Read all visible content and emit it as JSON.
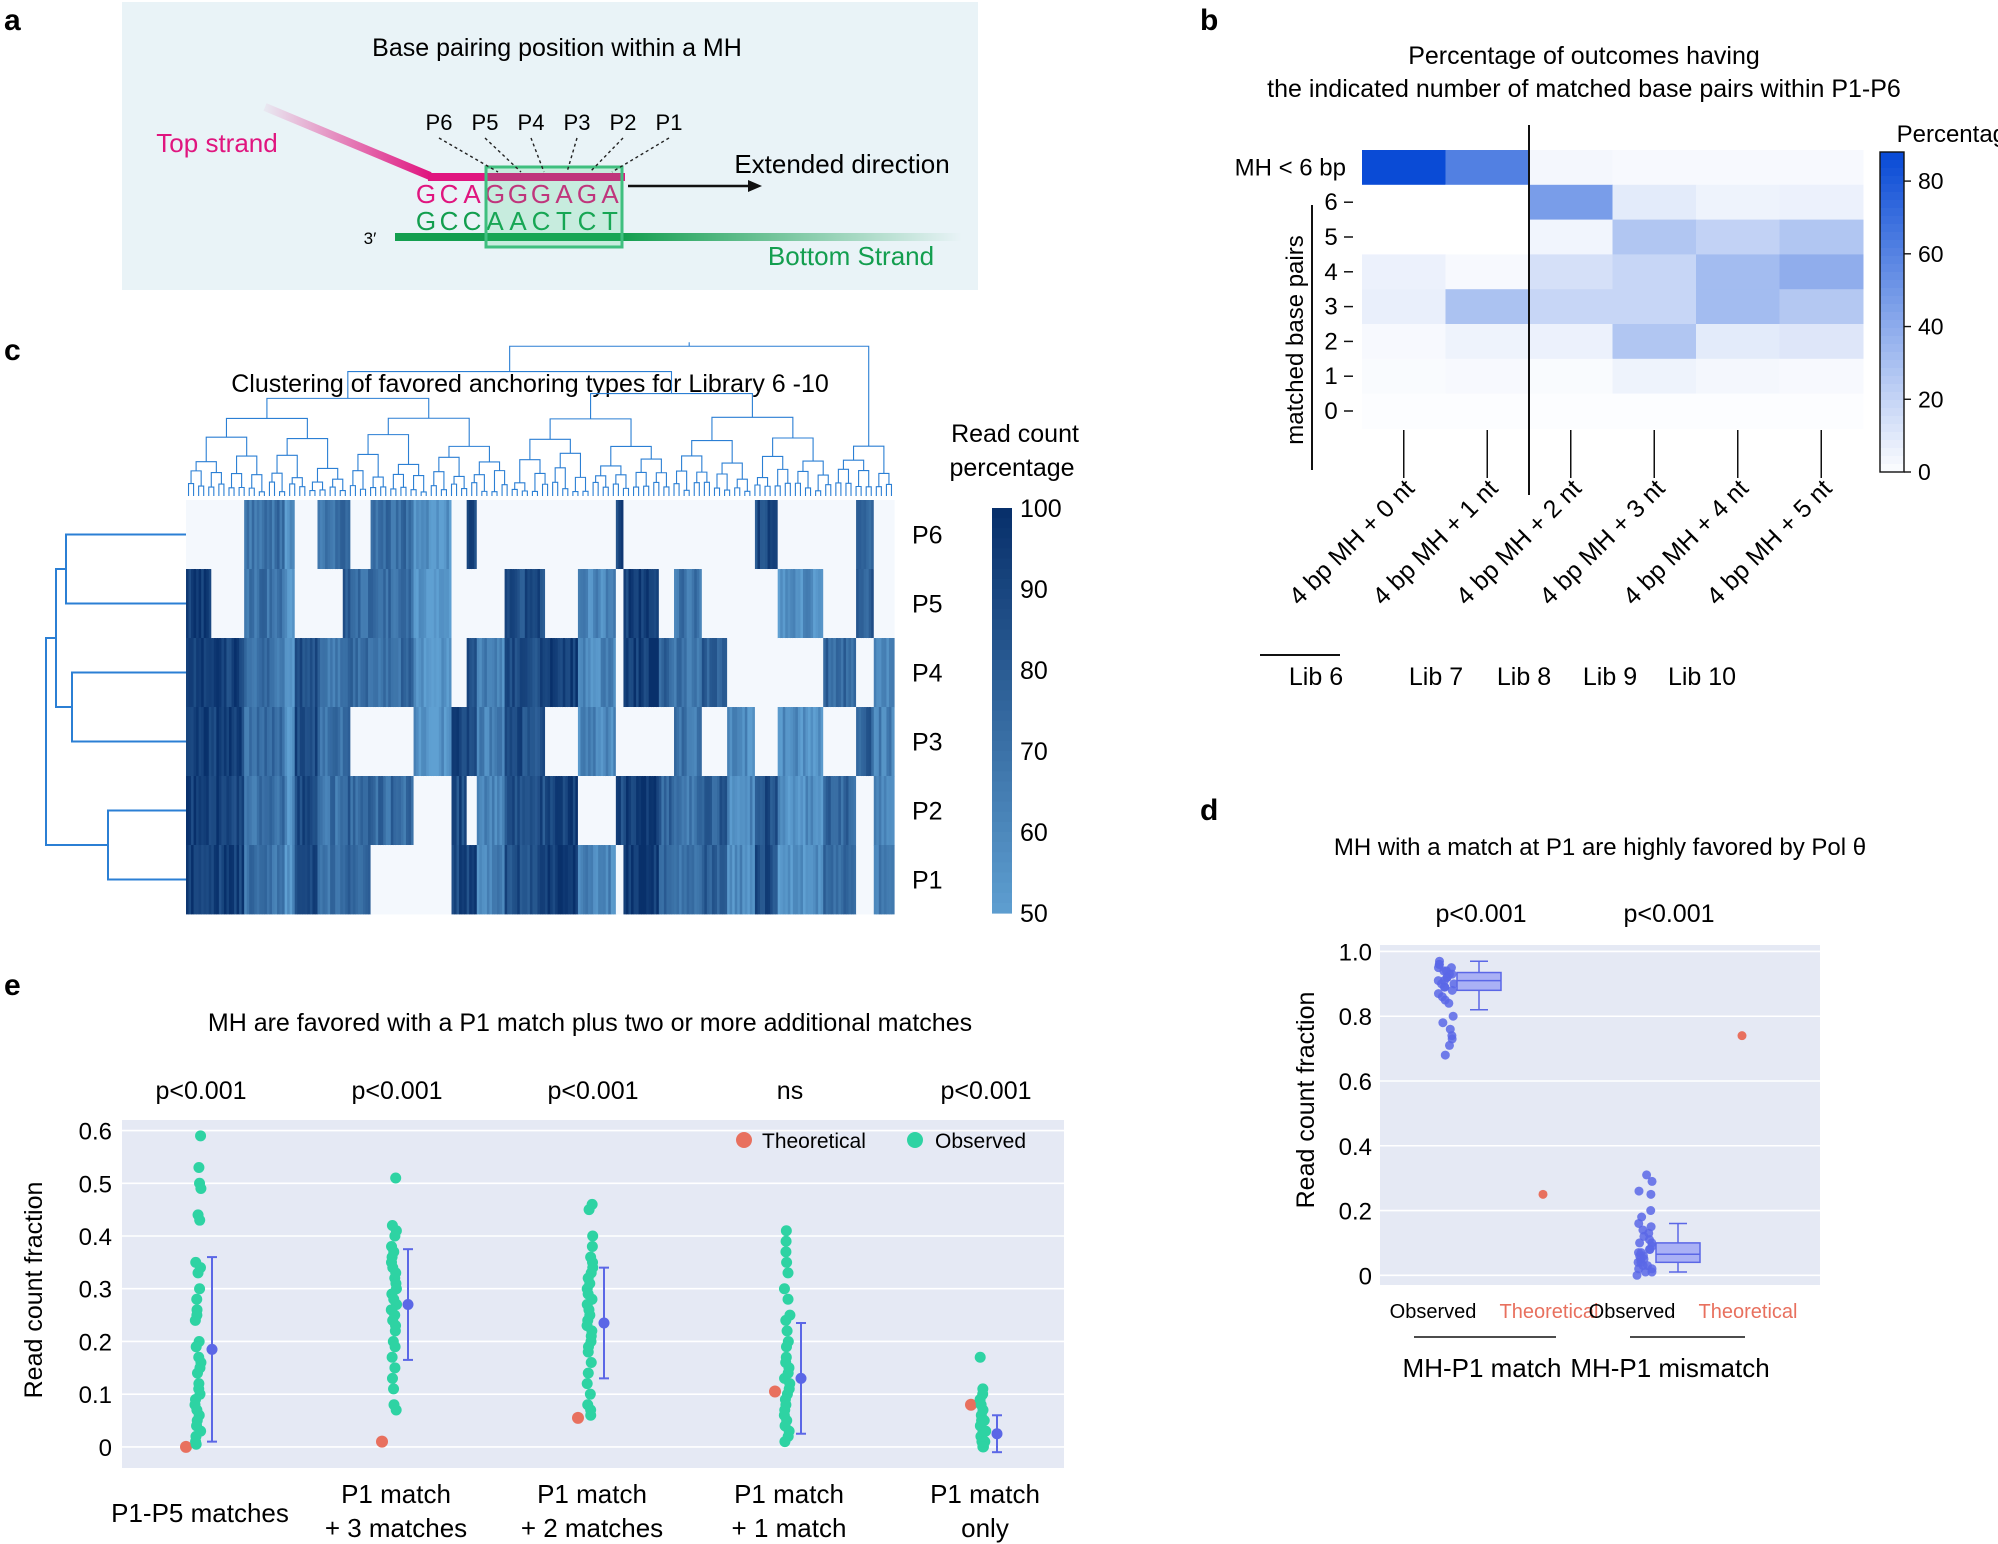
{
  "panel_labels": [
    "a",
    "b",
    "c",
    "d",
    "e"
  ],
  "colors": {
    "top_strand": "#e0157f",
    "bottom_strand": "#139e4f",
    "heat_blue": "#0a4bd6",
    "cluster_blue": "#2b7fd4",
    "dark_navy": "#0b3d7e",
    "theoretical": "#e8705e",
    "observed": "#2ed3a3",
    "mean": "#5b67e6",
    "panel_bg": "#e5e9f4",
    "diagram_bg": "#e9f3f7"
  },
  "panel_a": {
    "title": "Base pairing position within a MH",
    "top_strand_label": "Top strand",
    "bottom_strand_label": "Bottom Strand",
    "extended_direction": "Extended direction",
    "three_prime": "3′",
    "top_seq": [
      "G",
      "C",
      "A",
      "G",
      "G",
      "G",
      "A",
      "G",
      "A"
    ],
    "bottom_seq": [
      "G",
      "C",
      "C",
      "A",
      "A",
      "C",
      "T",
      "C",
      "T"
    ],
    "positions": [
      "P6",
      "P5",
      "P4",
      "P3",
      "P2",
      "P1"
    ]
  },
  "chart_data": [
    {
      "panel": "b",
      "type": "heatmap",
      "title": "Percentage of outcomes having the indicated number of matched base pairs within P1-P6",
      "title_lines": [
        "Percentage of outcomes having",
        "the indicated number of matched base pairs within P1-P6"
      ],
      "ylabel": "matched base pairs",
      "rows": [
        "MH < 6 bp",
        "6",
        "5",
        "4",
        "3",
        "2",
        "1",
        "0"
      ],
      "columns": [
        "4 bp MH + 0 nt",
        "4 bp MH + 1 nt",
        "4 bp MH + 2 nt",
        "4 bp MH + 3 nt",
        "4 bp MH + 4 nt",
        "4 bp MH + 5 nt"
      ],
      "libraries": [
        "Lib 6",
        "Lib 7",
        "Lib 8",
        "Lib 9",
        "Lib 10"
      ],
      "values": [
        [
          88,
          62,
          4,
          3,
          3,
          3
        ],
        [
          0,
          0,
          48,
          10,
          6,
          7
        ],
        [
          0,
          0,
          5,
          28,
          22,
          28
        ],
        [
          7,
          3,
          15,
          20,
          33,
          40
        ],
        [
          8,
          30,
          20,
          20,
          33,
          27
        ],
        [
          3,
          6,
          7,
          28,
          10,
          12
        ],
        [
          2,
          3,
          2,
          6,
          4,
          3
        ],
        [
          1,
          1,
          1,
          1,
          1,
          1
        ]
      ],
      "colorbar": {
        "label": "Percentage",
        "min": 0,
        "max": 88,
        "ticks": [
          0,
          20,
          40,
          60,
          80
        ]
      }
    },
    {
      "panel": "c",
      "type": "heatmap",
      "title": "Clustering of favored anchoring types for Library 6 -10",
      "rows": [
        "P6",
        "P5",
        "P4",
        "P3",
        "P2",
        "P1"
      ],
      "n_columns": 280,
      "colorbar": {
        "label_lines": [
          "Read count",
          "percentage"
        ],
        "min": 50,
        "max": 100,
        "ticks": [
          100,
          90,
          80,
          70,
          60,
          50
        ]
      },
      "row_dendrogram": true,
      "column_dendrogram": true
    },
    {
      "panel": "d",
      "type": "scatter",
      "title": "MH with a match at P1 are highly favored by Pol θ",
      "ylabel": "Read count fraction",
      "ylim": [
        -0.03,
        1.02
      ],
      "yticks": [
        0,
        0.2,
        0.4,
        0.6,
        0.8,
        1.0
      ],
      "ytick_labels": [
        "0",
        "0.2",
        "0.4",
        "0.6",
        "0.8",
        "1.0"
      ],
      "groups": [
        {
          "name": "MH-P1 match",
          "pvalue": "p<0.001",
          "observed_label": "Observed",
          "theoretical_label": "Theoretical",
          "observed": [
            0.97,
            0.96,
            0.96,
            0.95,
            0.95,
            0.94,
            0.94,
            0.93,
            0.93,
            0.92,
            0.92,
            0.91,
            0.91,
            0.9,
            0.9,
            0.89,
            0.89,
            0.88,
            0.87,
            0.86,
            0.85,
            0.84,
            0.8,
            0.78,
            0.76,
            0.74,
            0.73,
            0.71,
            0.68
          ],
          "box": {
            "q1": 0.88,
            "median": 0.91,
            "q3": 0.935,
            "whisker_low": 0.82,
            "whisker_high": 0.97
          },
          "theoretical": 0.25
        },
        {
          "name": "MH-P1 mismatch",
          "pvalue": "p<0.001",
          "observed_label": "Observed",
          "theoretical_label": "Theoretical",
          "observed": [
            0.31,
            0.29,
            0.26,
            0.25,
            0.2,
            0.18,
            0.16,
            0.15,
            0.14,
            0.13,
            0.12,
            0.11,
            0.1,
            0.1,
            0.09,
            0.08,
            0.08,
            0.07,
            0.07,
            0.06,
            0.06,
            0.05,
            0.05,
            0.04,
            0.04,
            0.03,
            0.03,
            0.02,
            0.02,
            0.01,
            0.01,
            0.0
          ],
          "box": {
            "q1": 0.04,
            "median": 0.065,
            "q3": 0.1,
            "whisker_low": 0.01,
            "whisker_high": 0.16
          },
          "theoretical": 0.74
        }
      ]
    },
    {
      "panel": "e",
      "type": "scatter",
      "title": "MH are favored with a P1 match plus two or more additional matches",
      "ylabel": "Read count fraction",
      "ylim": [
        -0.04,
        0.62
      ],
      "yticks": [
        0,
        0.1,
        0.2,
        0.3,
        0.4,
        0.5,
        0.6
      ],
      "ytick_labels": [
        "0",
        "0.1",
        "0.2",
        "0.3",
        "0.4",
        "0.5",
        "0.6"
      ],
      "legend": {
        "theoretical": "Theoretical",
        "observed": "Observed",
        "position": "top-right"
      },
      "groups": [
        {
          "label_lines": [
            "P1-P5 matches"
          ],
          "pvalue": "p<0.001",
          "theoretical": 0.0,
          "observed": [
            0.59,
            0.53,
            0.5,
            0.49,
            0.44,
            0.43,
            0.35,
            0.34,
            0.33,
            0.3,
            0.28,
            0.26,
            0.25,
            0.24,
            0.2,
            0.19,
            0.17,
            0.16,
            0.15,
            0.14,
            0.12,
            0.11,
            0.1,
            0.09,
            0.08,
            0.07,
            0.06,
            0.05,
            0.04,
            0.03,
            0.02,
            0.01,
            0.005
          ],
          "mean": 0.185,
          "err_low": 0.01,
          "err_high": 0.36
        },
        {
          "label_lines": [
            "P1 match",
            "+ 3 matches"
          ],
          "pvalue": "p<0.001",
          "theoretical": 0.01,
          "observed": [
            0.51,
            0.42,
            0.41,
            0.4,
            0.38,
            0.37,
            0.36,
            0.35,
            0.34,
            0.33,
            0.32,
            0.31,
            0.3,
            0.29,
            0.28,
            0.27,
            0.26,
            0.25,
            0.24,
            0.23,
            0.22,
            0.2,
            0.19,
            0.17,
            0.15,
            0.13,
            0.11,
            0.08,
            0.07
          ],
          "mean": 0.27,
          "err_low": 0.165,
          "err_high": 0.375
        },
        {
          "label_lines": [
            "P1 match",
            "+ 2 matches"
          ],
          "pvalue": "p<0.001",
          "theoretical": 0.055,
          "observed": [
            0.46,
            0.45,
            0.4,
            0.38,
            0.36,
            0.35,
            0.34,
            0.33,
            0.32,
            0.31,
            0.3,
            0.29,
            0.28,
            0.27,
            0.26,
            0.25,
            0.24,
            0.23,
            0.22,
            0.21,
            0.2,
            0.19,
            0.18,
            0.16,
            0.14,
            0.12,
            0.1,
            0.08,
            0.07,
            0.06
          ],
          "mean": 0.235,
          "err_low": 0.13,
          "err_high": 0.34
        },
        {
          "label_lines": [
            "P1 match",
            "+ 1 match"
          ],
          "pvalue": "ns",
          "theoretical": 0.105,
          "observed": [
            0.41,
            0.39,
            0.37,
            0.35,
            0.33,
            0.3,
            0.28,
            0.25,
            0.24,
            0.22,
            0.2,
            0.19,
            0.17,
            0.16,
            0.15,
            0.14,
            0.13,
            0.12,
            0.11,
            0.1,
            0.09,
            0.08,
            0.07,
            0.06,
            0.05,
            0.04,
            0.03,
            0.02,
            0.01
          ],
          "mean": 0.13,
          "err_low": 0.025,
          "err_high": 0.235
        },
        {
          "label_lines": [
            "P1 match",
            "only"
          ],
          "pvalue": "p<0.001",
          "theoretical": 0.08,
          "observed": [
            0.17,
            0.11,
            0.1,
            0.09,
            0.08,
            0.07,
            0.06,
            0.05,
            0.05,
            0.04,
            0.04,
            0.03,
            0.03,
            0.02,
            0.02,
            0.01,
            0.01,
            0.005,
            0.0,
            0.0
          ],
          "mean": 0.025,
          "err_low": -0.01,
          "err_high": 0.06
        }
      ]
    }
  ]
}
